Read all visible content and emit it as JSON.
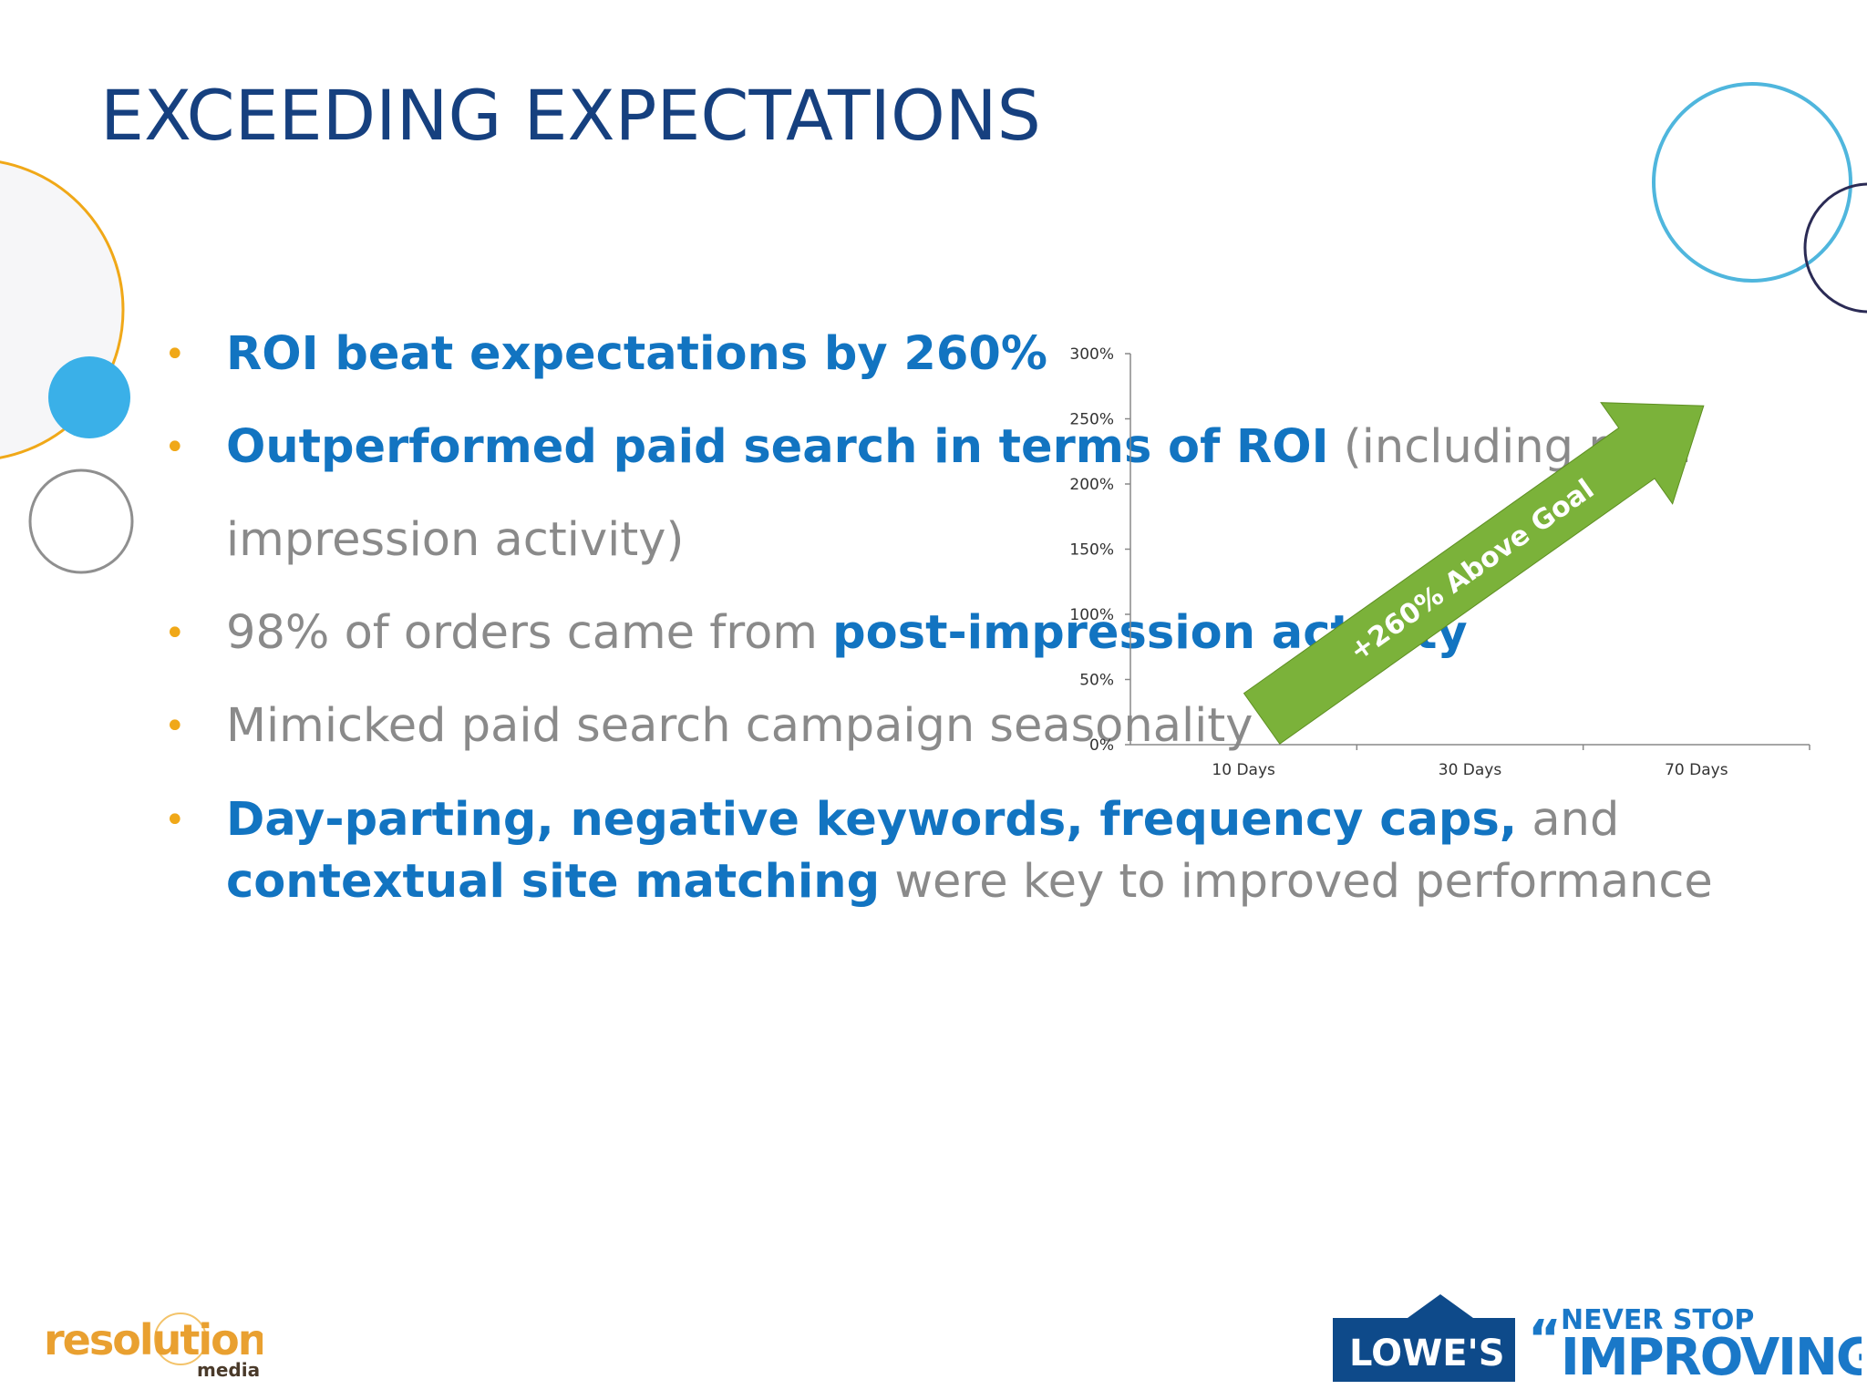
{
  "colors": {
    "title": "#16407f",
    "accent_blue": "#1274c1",
    "body_gray": "#8a8a8a",
    "bullet_gold": "#f0a818",
    "arrow_green": "#7bb23a",
    "lowes_blue": "#0e4a8a",
    "res_orange": "#e9a030"
  },
  "title": "EXCEEDING EXPECTATIONS",
  "bullets": [
    {
      "parts": [
        {
          "text": "ROI beat expectations by 260%",
          "bold": true
        }
      ]
    },
    {
      "parts": [
        {
          "text": "Outperformed paid search in terms of ROI",
          "bold": true
        },
        {
          "text": " (including post impression activity)",
          "bold": false
        }
      ]
    },
    {
      "parts": [
        {
          "text": "98% of orders came from ",
          "bold": false
        },
        {
          "text": "post-impression activity",
          "bold": true
        }
      ]
    },
    {
      "parts": [
        {
          "text": "Mimicked paid search campaign seasonality",
          "bold": false
        }
      ]
    },
    {
      "parts": [
        {
          "text": "Day-parting, negative keywords, frequency caps,",
          "bold": true
        },
        {
          "text": " and ",
          "bold": false
        },
        {
          "text": "contextual site matching",
          "bold": true
        },
        {
          "text": " were key to improved performance",
          "bold": false
        }
      ]
    }
  ],
  "bullet_symbol": "•",
  "chart_data": {
    "type": "bar",
    "categories": [
      "10 Days",
      "30 Days",
      "70 Days"
    ],
    "y_ticks": [
      "0%",
      "50%",
      "100%",
      "150%",
      "200%",
      "250%",
      "300%"
    ],
    "ylim": [
      0,
      300
    ],
    "annotation": "+260% Above Goal",
    "arrow_from": [
      "10 Days",
      20
    ],
    "arrow_to": [
      "70 Days",
      260
    ]
  },
  "logos": {
    "resolution_main": "resolution",
    "resolution_sub": "media",
    "lowes_name": "LOWE'S",
    "tagline_line1": "NEVER STOP",
    "tagline_line2": "IMPROVING"
  }
}
